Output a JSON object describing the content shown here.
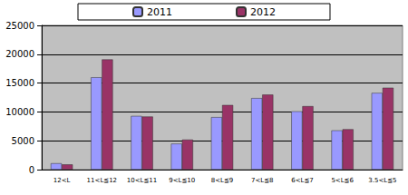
{
  "chart_data": {
    "type": "bar",
    "categories": [
      "12<L",
      "11<L≦12",
      "10<L≦11",
      "9<L≦10",
      "8<L≦9",
      "7<L≦8",
      "6<L≦7",
      "5<L≦6",
      "3.5<L≦5"
    ],
    "series": [
      {
        "name": "2011",
        "color": "#9999ff",
        "values": [
          1100,
          16000,
          9300,
          4500,
          9100,
          12400,
          10100,
          6800,
          13300
        ]
      },
      {
        "name": "2012",
        "color": "#993366",
        "values": [
          900,
          19100,
          9200,
          5200,
          11200,
          13000,
          11000,
          7000,
          14200
        ]
      }
    ],
    "ylim": [
      0,
      25000
    ],
    "yticks": [
      0,
      5000,
      10000,
      15000,
      20000,
      25000
    ],
    "grid": true,
    "legend": "top"
  }
}
